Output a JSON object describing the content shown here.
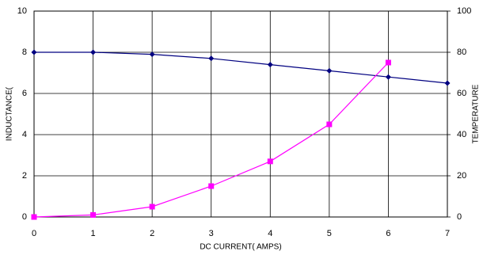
{
  "chart_data": {
    "type": "line",
    "x_label": "DC CURRENT( AMPS)",
    "y_label": "INDUCTANCE(",
    "y2_label": "TEMPERATURE",
    "x": [
      0,
      1,
      2,
      3,
      4,
      5,
      6,
      7
    ],
    "series": [
      {
        "color": "#000080",
        "marker": "diamond",
        "values": [
          8.0,
          8.0,
          7.9,
          7.7,
          7.4,
          7.1,
          6.8,
          6.5
        ]
      },
      {
        "color": "#ff00ff",
        "marker": "square",
        "axis": "y2",
        "values": [
          0,
          1,
          5,
          15,
          27,
          45,
          75,
          null
        ]
      }
    ],
    "xlim": [
      0,
      7
    ],
    "xticks": [
      0,
      1,
      2,
      3,
      4,
      5,
      6,
      7
    ],
    "ylim": [
      0,
      10
    ],
    "yticks": [
      0,
      2,
      4,
      6,
      8,
      10
    ],
    "y2lim": [
      0,
      100
    ],
    "y2ticks": [
      0,
      20,
      40,
      60,
      80,
      100
    ],
    "grid": true
  }
}
